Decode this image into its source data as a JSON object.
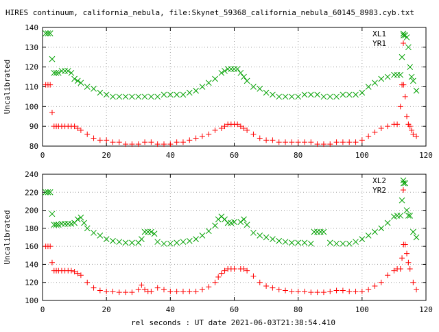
{
  "title": "HIRES continuum, california_nebula, file:Skynet_59368_california_nebula_60145_8983.cyb.txt",
  "xlabel": "rel seconds : UT date 2021-06-03T21:38:54.410",
  "colors": {
    "green": "#00a000",
    "red": "#ff0000",
    "axis": "#000000",
    "grid": "#a0a0a0"
  },
  "chart_data": [
    {
      "type": "scatter",
      "ylabel": "Uncalibrated",
      "xlim": [
        0,
        120
      ],
      "ylim": [
        80,
        140
      ],
      "xticks": [
        0,
        20,
        40,
        60,
        80,
        100,
        120
      ],
      "yticks": [
        80,
        90,
        100,
        110,
        120,
        130,
        140
      ],
      "grid": true,
      "legend": "top-right",
      "series": [
        {
          "name": "XL1",
          "marker": "x",
          "color": "#00a000",
          "x": [
            1,
            1.7,
            2.4,
            3,
            3.6,
            4.3,
            5,
            6,
            7,
            8,
            9,
            10,
            11,
            12,
            14,
            16,
            18,
            20,
            22,
            24,
            26,
            28,
            30,
            32,
            34,
            36,
            38,
            40,
            42,
            44,
            46,
            48,
            50,
            52,
            54,
            56,
            57,
            58,
            59,
            60,
            61,
            62,
            63,
            64,
            66,
            68,
            70,
            72,
            74,
            76,
            78,
            80,
            82,
            84,
            86,
            88,
            90,
            92,
            94,
            96,
            98,
            100,
            102,
            104,
            106,
            108,
            110,
            111,
            112,
            112.5,
            113,
            113.5,
            114,
            114.5,
            115,
            115.5,
            116,
            117
          ],
          "y": [
            137,
            137,
            137,
            124,
            117,
            117,
            117,
            118,
            118,
            118,
            117,
            114,
            113,
            112,
            110,
            109,
            107,
            106,
            105,
            105,
            105,
            105,
            105,
            105,
            105,
            105,
            106,
            106,
            106,
            106,
            107,
            108,
            110,
            112,
            114,
            117,
            118,
            119,
            119,
            119,
            119,
            117,
            115,
            113,
            110,
            109,
            107,
            106,
            105,
            105,
            105,
            105,
            106,
            106,
            106,
            105,
            105,
            105,
            106,
            106,
            106,
            107,
            110,
            112,
            114,
            115,
            116,
            116,
            116,
            125,
            136,
            136,
            135,
            130,
            120,
            115,
            113,
            108
          ]
        },
        {
          "name": "YR1",
          "marker": "+",
          "color": "#ff0000",
          "x": [
            1,
            1.7,
            2.4,
            3,
            3.6,
            4.3,
            5,
            6,
            7,
            8,
            9,
            10,
            11,
            12,
            14,
            16,
            18,
            20,
            22,
            24,
            26,
            28,
            30,
            32,
            34,
            36,
            38,
            40,
            42,
            44,
            46,
            48,
            50,
            52,
            54,
            56,
            57,
            58,
            59,
            60,
            61,
            62,
            63,
            64,
            66,
            68,
            70,
            72,
            74,
            76,
            78,
            80,
            82,
            84,
            86,
            88,
            90,
            92,
            94,
            96,
            98,
            100,
            102,
            104,
            106,
            108,
            110,
            111,
            112,
            112.5,
            113,
            113.5,
            114,
            114.5,
            115,
            115.5,
            116,
            117
          ],
          "y": [
            111,
            111,
            111,
            97,
            90,
            90,
            90,
            90,
            90,
            90,
            90,
            90,
            89,
            88,
            86,
            84,
            83,
            83,
            82,
            82,
            81,
            81,
            81,
            82,
            82,
            81,
            81,
            81,
            82,
            82,
            83,
            84,
            85,
            86,
            88,
            89,
            90,
            91,
            91,
            91,
            91,
            90,
            89,
            88,
            86,
            84,
            83,
            83,
            82,
            82,
            82,
            82,
            82,
            82,
            81,
            81,
            81,
            82,
            82,
            82,
            82,
            83,
            85,
            87,
            89,
            90,
            91,
            91,
            100,
            111,
            111,
            105,
            95,
            91,
            90,
            88,
            86,
            85
          ]
        }
      ]
    },
    {
      "type": "scatter",
      "ylabel": "Uncalibrated",
      "xlim": [
        0,
        120
      ],
      "ylim": [
        100,
        240
      ],
      "xticks": [
        0,
        20,
        40,
        60,
        80,
        100,
        120
      ],
      "yticks": [
        100,
        120,
        140,
        160,
        180,
        200,
        220,
        240
      ],
      "grid": true,
      "legend": "top-right",
      "series": [
        {
          "name": "XL2",
          "marker": "x",
          "color": "#00a000",
          "x": [
            1,
            1.7,
            2.4,
            3,
            3.6,
            4.3,
            5,
            6,
            7,
            8,
            9,
            10,
            11,
            12,
            13,
            14,
            16,
            18,
            20,
            22,
            24,
            26,
            28,
            30,
            31,
            32,
            33,
            34,
            35,
            36,
            38,
            40,
            42,
            44,
            46,
            48,
            50,
            52,
            54,
            55,
            56,
            57,
            58,
            59,
            60,
            62,
            63,
            64,
            66,
            68,
            70,
            72,
            74,
            76,
            78,
            80,
            82,
            84,
            85,
            86,
            87,
            88,
            90,
            92,
            94,
            96,
            98,
            100,
            102,
            104,
            106,
            108,
            110,
            111,
            112,
            112.5,
            113,
            113.5,
            114,
            114.5,
            115,
            116,
            117
          ],
          "y": [
            220,
            220,
            220,
            196,
            184,
            184,
            184,
            185,
            185,
            185,
            185,
            186,
            190,
            192,
            186,
            180,
            175,
            172,
            168,
            166,
            165,
            164,
            164,
            164,
            168,
            176,
            176,
            176,
            174,
            165,
            163,
            163,
            164,
            165,
            166,
            168,
            172,
            177,
            183,
            190,
            193,
            190,
            186,
            186,
            187,
            187,
            190,
            184,
            175,
            172,
            170,
            168,
            166,
            165,
            164,
            164,
            164,
            163,
            176,
            176,
            176,
            176,
            164,
            163,
            163,
            163,
            165,
            168,
            172,
            176,
            180,
            186,
            193,
            194,
            194,
            211,
            230,
            230,
            200,
            194,
            194,
            176,
            170
          ]
        },
        {
          "name": "YR2",
          "marker": "+",
          "color": "#ff0000",
          "x": [
            1,
            1.7,
            2.4,
            3,
            3.6,
            4.3,
            5,
            6,
            7,
            8,
            9,
            10,
            11,
            12,
            14,
            16,
            18,
            20,
            22,
            24,
            26,
            28,
            30,
            31,
            32,
            33,
            34,
            36,
            38,
            40,
            42,
            44,
            46,
            48,
            50,
            52,
            54,
            55,
            56,
            57,
            58,
            59,
            60,
            62,
            63,
            64,
            66,
            68,
            70,
            72,
            74,
            76,
            78,
            80,
            82,
            84,
            86,
            88,
            90,
            92,
            94,
            96,
            98,
            100,
            102,
            104,
            106,
            108,
            110,
            111,
            112,
            112.5,
            113,
            113.5,
            114,
            114.5,
            115,
            116,
            117
          ],
          "y": [
            160,
            160,
            160,
            142,
            133,
            133,
            133,
            133,
            133,
            133,
            133,
            132,
            130,
            128,
            120,
            114,
            111,
            110,
            110,
            109,
            109,
            109,
            112,
            117,
            112,
            110,
            110,
            114,
            112,
            110,
            110,
            110,
            110,
            110,
            112,
            115,
            120,
            126,
            130,
            133,
            135,
            135,
            135,
            135,
            135,
            133,
            127,
            120,
            116,
            114,
            112,
            111,
            110,
            110,
            110,
            109,
            109,
            109,
            110,
            111,
            111,
            110,
            110,
            110,
            112,
            116,
            120,
            128,
            133,
            135,
            135,
            147,
            162,
            162,
            152,
            142,
            135,
            120,
            112
          ]
        }
      ]
    }
  ]
}
